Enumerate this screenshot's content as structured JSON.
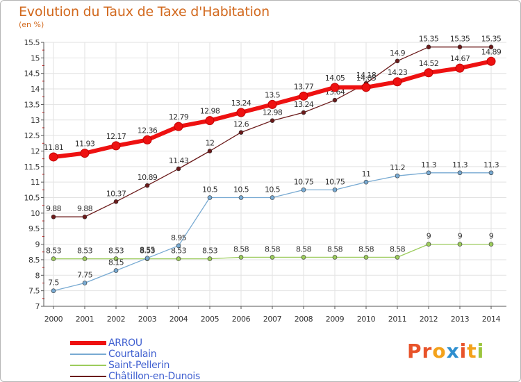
{
  "header": {
    "title": "Evolution du Taux de Taxe d'Habitation",
    "unit_note": "(en %)"
  },
  "logo": {
    "text": "Proxiti",
    "letter_colors": [
      "#e8532a",
      "#e8532a",
      "#f3a21b",
      "#2f8fcf",
      "#e8532a",
      "#f3a21b",
      "#9bc53d"
    ]
  },
  "colors": {
    "title": "#d2691e",
    "legend_text": "#4060d0",
    "tick_marks": "#cc0000"
  },
  "chart_data": {
    "type": "line",
    "x": [
      "2000",
      "2001",
      "2002",
      "2003",
      "2004",
      "2005",
      "2006",
      "2007",
      "2008",
      "2009",
      "2010",
      "2011",
      "2012",
      "2013",
      "2014"
    ],
    "ylim": [
      7,
      15.5
    ],
    "yticks": [
      "7",
      "7.5",
      "8",
      "8.5",
      "9",
      "9.5",
      "10",
      "10.5",
      "11",
      "11.5",
      "12",
      "12.5",
      "13",
      "13.5",
      "14",
      "14.5",
      "15",
      "15.5"
    ],
    "grid": true,
    "legend_position": "bottom-left",
    "series": [
      {
        "name": "Châtillon-en-Dunois",
        "color": "#6b1a1a",
        "width": 1.3,
        "values": [
          9.88,
          9.88,
          10.37,
          10.89,
          11.43,
          12,
          12.6,
          12.98,
          13.24,
          13.64,
          14.18,
          14.9,
          15.35,
          15.35,
          15.35
        ],
        "labels": [
          "9.88",
          "9.88",
          "10.37",
          "10.89",
          "11.43",
          "12",
          "12.6",
          "12.98",
          "13.24",
          "13.64",
          "14.18",
          "14.9",
          "15.35",
          "15.35",
          "15.35"
        ]
      },
      {
        "name": "Saint-Pellerin",
        "color": "#9ccc5c",
        "width": 1.3,
        "values": [
          8.53,
          8.53,
          8.53,
          8.53,
          8.53,
          8.53,
          8.58,
          8.58,
          8.58,
          8.58,
          8.58,
          8.58,
          9,
          9,
          9
        ],
        "labels": [
          "8.53",
          "8.53",
          "8.53",
          "8.53",
          "8.53",
          "8.53",
          "8.58",
          "8.58",
          "8.58",
          "8.58",
          "8.58",
          "8.58",
          "9",
          "9",
          "9"
        ]
      },
      {
        "name": "Courtalain",
        "color": "#78aad2",
        "width": 1.3,
        "values": [
          7.5,
          7.75,
          8.15,
          8.55,
          8.95,
          10.5,
          10.5,
          10.5,
          10.75,
          10.75,
          11,
          11.2,
          11.3,
          11.3,
          11.3
        ],
        "labels": [
          "7.5",
          "7.75",
          "8.15",
          "8.55",
          "8.95",
          "10.5",
          "10.5",
          "10.5",
          "10.75",
          "10.75",
          "11",
          "11.2",
          "11.3",
          "11.3",
          "11.3"
        ]
      },
      {
        "name": "ARROU",
        "color": "#ee1111",
        "width": 6,
        "values": [
          11.81,
          11.93,
          12.17,
          12.36,
          12.79,
          12.98,
          13.24,
          13.5,
          13.77,
          14.05,
          14.05,
          14.23,
          14.52,
          14.67,
          14.89
        ],
        "labels": [
          "11.81",
          "11.93",
          "12.17",
          "12.36",
          "12.79",
          "12.98",
          "13.24",
          "13.5",
          "13.77",
          "14.05",
          "14.05",
          "14.23",
          "14.52",
          "14.67",
          "14.89"
        ]
      }
    ]
  },
  "legend": {
    "items": [
      {
        "label": "ARROU",
        "color": "#ee1111"
      },
      {
        "label": "Courtalain",
        "color": "#78aad2"
      },
      {
        "label": "Saint-Pellerin",
        "color": "#9ccc5c"
      },
      {
        "label": "Châtillon-en-Dunois",
        "color": "#6b1a1a"
      }
    ]
  }
}
